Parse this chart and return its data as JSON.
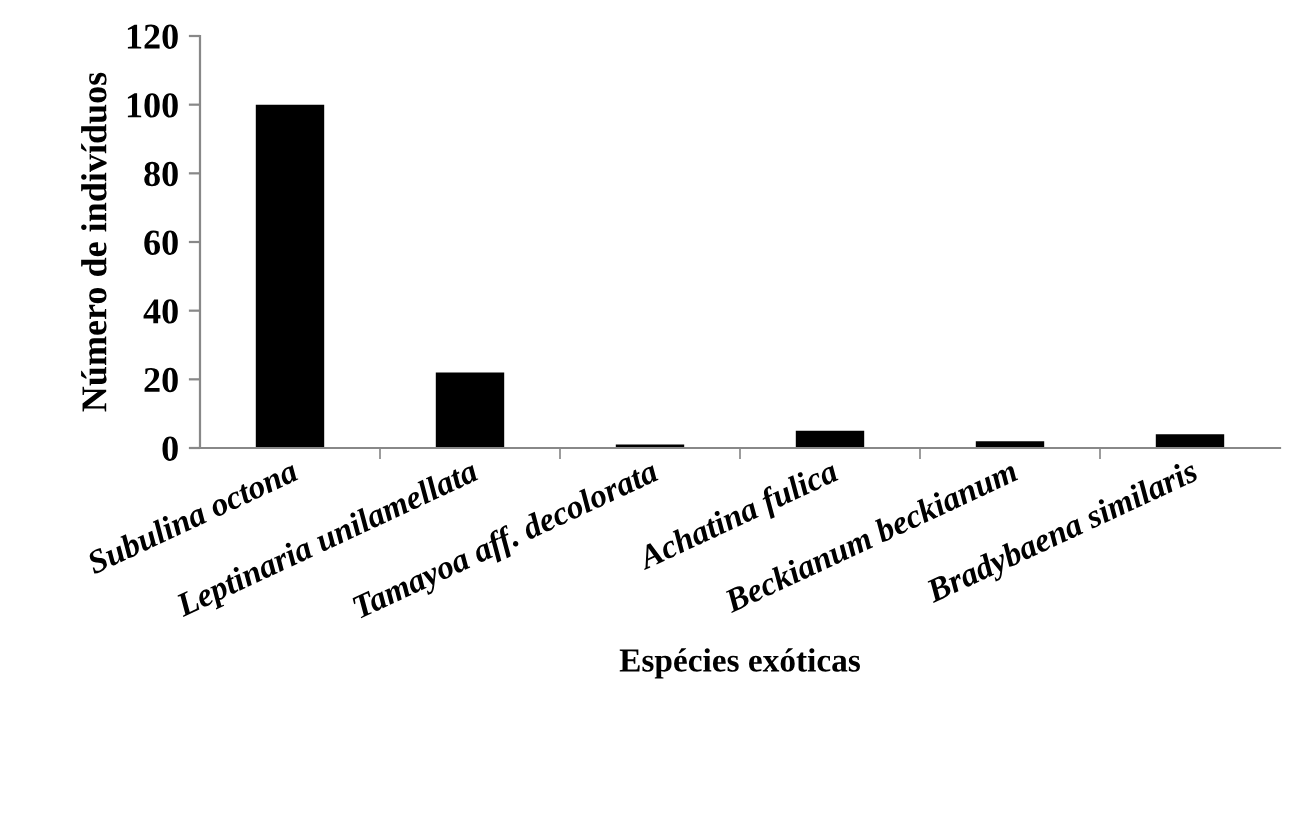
{
  "chart_data": {
    "type": "bar",
    "xlabel": "Espécies exóticas",
    "ylabel": "Número de indivíduos",
    "categories": [
      "Subulina octona",
      "Leptinaria unilamellata",
      "Tamayoa aff. decolorata",
      "Achatina fulica",
      "Beckianum beckianum",
      "Bradybaena similaris"
    ],
    "values": [
      100,
      22,
      1,
      5,
      2,
      4
    ],
    "color": "#000000",
    "ylim": [
      0,
      120
    ],
    "yticks": [
      0,
      20,
      40,
      60,
      80,
      100,
      120
    ],
    "grid": false
  }
}
